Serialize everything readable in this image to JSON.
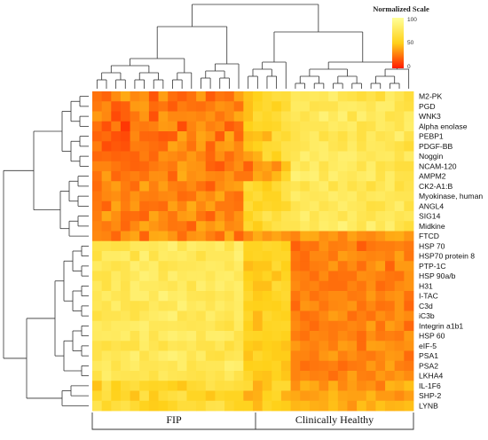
{
  "chart_data": {
    "type": "heatmap",
    "title": "",
    "xlabel": "",
    "ylabel": "",
    "legend": {
      "title": "Normalized Scale",
      "ticks": [
        "100",
        "50",
        "0"
      ],
      "colors": [
        "#ffff99",
        "#ffd11a",
        "#ff1a00"
      ],
      "range": [
        0,
        100
      ],
      "placement": "top-right"
    },
    "rows": [
      "M2-PK",
      "PGD",
      "WNK3",
      "Alpha enolase",
      "PEBP1",
      "PDGF-BB",
      "Noggin",
      "NCAM-120",
      "AMPM2",
      "CK2-A1:B",
      "Myokinase, human",
      "ANGL4",
      "SIG14",
      "Midkine",
      "FTCD",
      "HSP 70",
      "HSP70 protein 8",
      "PTP-1C",
      "HSP 90a/b",
      "H31",
      "I-TAC",
      "C3d",
      "iC3b",
      "Integrin a1b1",
      "HSP 60",
      "eIF-5",
      "PSA1",
      "PSA2",
      "LKHA4",
      "IL-1F6",
      "SHP-2",
      "LYNB"
    ],
    "column_groups": [
      {
        "name": "FIP",
        "count": 16
      },
      {
        "name": "Clinically Healthy",
        "count": 18
      }
    ],
    "n_columns": 34,
    "matrix": [
      [
        24,
        20,
        31,
        39,
        30,
        33,
        16,
        36,
        23,
        19,
        24,
        36,
        18,
        25,
        23,
        37,
        46,
        51,
        59,
        64,
        63,
        76,
        74,
        76,
        74,
        83,
        71,
        68,
        63,
        69,
        61,
        79,
        72,
        63
      ],
      [
        26,
        31,
        17,
        19,
        35,
        36,
        22,
        25,
        18,
        27,
        24,
        23,
        27,
        33,
        31,
        24,
        45,
        54,
        59,
        51,
        60,
        78,
        78,
        69,
        70,
        70,
        79,
        80,
        77,
        72,
        82,
        81,
        68,
        65
      ],
      [
        35,
        30,
        13,
        19,
        25,
        34,
        15,
        36,
        30,
        30,
        31,
        29,
        33,
        25,
        31,
        39,
        45,
        61,
        56,
        61,
        70,
        75,
        69,
        75,
        86,
        76,
        85,
        67,
        84,
        75,
        79,
        68,
        70,
        80
      ],
      [
        24,
        15,
        27,
        8,
        28,
        26,
        28,
        35,
        34,
        14,
        29,
        35,
        28,
        31,
        18,
        23,
        50,
        56,
        54,
        56,
        66,
        70,
        73,
        73,
        73,
        79,
        76,
        80,
        66,
        69,
        79,
        76,
        70,
        81
      ],
      [
        20,
        22,
        15,
        13,
        30,
        21,
        21,
        17,
        18,
        38,
        27,
        38,
        34,
        18,
        39,
        21,
        44,
        46,
        41,
        64,
        60,
        69,
        74,
        79,
        66,
        73,
        66,
        76,
        66,
        78,
        70,
        73,
        84,
        69
      ],
      [
        27,
        14,
        17,
        15,
        27,
        26,
        23,
        21,
        38,
        33,
        24,
        37,
        20,
        35,
        37,
        30,
        47,
        51,
        60,
        61,
        69,
        70,
        72,
        79,
        81,
        72,
        69,
        79,
        68,
        77,
        76,
        72,
        67,
        61
      ],
      [
        21,
        22,
        20,
        21,
        20,
        27,
        21,
        33,
        31,
        28,
        35,
        29,
        21,
        32,
        23,
        30,
        36,
        41,
        61,
        50,
        68,
        72,
        84,
        76,
        82,
        77,
        83,
        83,
        76,
        73,
        77,
        78,
        69,
        79
      ],
      [
        29,
        29,
        25,
        22,
        20,
        21,
        26,
        29,
        26,
        38,
        34,
        33,
        20,
        17,
        26,
        32,
        19,
        35,
        38,
        30,
        46,
        78,
        72,
        82,
        69,
        78,
        81,
        78,
        69,
        81,
        67,
        71,
        64,
        64
      ],
      [
        24,
        36,
        21,
        25,
        28,
        24,
        32,
        32,
        20,
        40,
        32,
        34,
        30,
        29,
        34,
        25,
        25,
        39,
        35,
        43,
        57,
        86,
        82,
        85,
        71,
        84,
        77,
        74,
        79,
        83,
        68,
        80,
        69,
        68
      ],
      [
        22,
        31,
        36,
        27,
        22,
        39,
        28,
        36,
        28,
        26,
        31,
        24,
        18,
        31,
        35,
        37,
        62,
        56,
        49,
        60,
        69,
        73,
        66,
        76,
        81,
        67,
        77,
        68,
        74,
        64,
        73,
        80,
        64,
        70
      ],
      [
        25,
        30,
        32,
        26,
        33,
        28,
        27,
        30,
        31,
        22,
        24,
        35,
        31,
        39,
        26,
        23,
        56,
        62,
        53,
        53,
        68,
        81,
        76,
        74,
        75,
        82,
        77,
        80,
        71,
        76,
        78,
        74,
        72,
        72
      ],
      [
        26,
        20,
        38,
        27,
        35,
        23,
        24,
        22,
        37,
        29,
        40,
        30,
        37,
        26,
        26,
        24,
        62,
        52,
        57,
        54,
        57,
        71,
        75,
        79,
        70,
        74,
        82,
        76,
        74,
        65,
        66,
        74,
        82,
        66
      ],
      [
        27,
        39,
        32,
        22,
        23,
        20,
        38,
        31,
        25,
        35,
        37,
        25,
        19,
        34,
        26,
        33,
        52,
        62,
        72,
        63,
        72,
        74,
        84,
        71,
        79,
        77,
        70,
        80,
        72,
        69,
        76,
        78,
        72,
        75
      ],
      [
        29,
        26,
        31,
        21,
        30,
        39,
        34,
        30,
        25,
        26,
        19,
        39,
        34,
        39,
        30,
        32,
        58,
        49,
        61,
        68,
        71,
        71,
        78,
        72,
        81,
        78,
        87,
        78,
        70,
        85,
        73,
        83,
        69,
        63
      ],
      [
        30,
        29,
        21,
        34,
        38,
        20,
        39,
        40,
        34,
        23,
        33,
        35,
        28,
        22,
        40,
        20,
        31,
        40,
        34,
        38,
        33,
        29,
        40,
        39,
        32,
        35,
        28,
        37,
        32,
        30,
        34,
        39,
        40,
        34
      ],
      [
        68,
        69,
        66,
        66,
        75,
        76,
        74,
        78,
        85,
        71,
        81,
        77,
        75,
        80,
        68,
        82,
        53,
        53,
        58,
        56,
        51,
        19,
        25,
        24,
        33,
        27,
        28,
        31,
        18,
        25,
        27,
        27,
        29,
        26
      ],
      [
        65,
        79,
        79,
        81,
        64,
        85,
        68,
        79,
        77,
        80,
        75,
        66,
        75,
        75,
        75,
        85,
        52,
        54,
        52,
        56,
        56,
        25,
        22,
        30,
        30,
        25,
        36,
        33,
        31,
        29,
        30,
        28,
        37,
        25
      ],
      [
        78,
        73,
        68,
        71,
        83,
        76,
        81,
        68,
        71,
        74,
        74,
        76,
        79,
        78,
        72,
        79,
        44,
        47,
        47,
        60,
        50,
        24,
        22,
        27,
        28,
        35,
        25,
        31,
        23,
        32,
        37,
        20,
        35,
        35
      ],
      [
        68,
        67,
        78,
        71,
        76,
        85,
        82,
        70,
        83,
        76,
        78,
        78,
        73,
        80,
        81,
        74,
        50,
        48,
        53,
        45,
        53,
        29,
        28,
        23,
        31,
        23,
        24,
        24,
        32,
        31,
        28,
        25,
        24,
        33
      ],
      [
        76,
        66,
        79,
        69,
        83,
        77,
        77,
        75,
        72,
        79,
        68,
        83,
        76,
        83,
        77,
        81,
        53,
        45,
        45,
        61,
        57,
        31,
        27,
        29,
        24,
        23,
        23,
        29,
        25,
        32,
        22,
        25,
        31,
        33
      ],
      [
        73,
        79,
        73,
        70,
        83,
        83,
        74,
        87,
        79,
        81,
        73,
        72,
        70,
        75,
        72,
        80,
        58,
        48,
        50,
        55,
        59,
        25,
        31,
        24,
        28,
        31,
        31,
        26,
        27,
        35,
        28,
        32,
        34,
        24
      ],
      [
        74,
        70,
        81,
        70,
        67,
        69,
        77,
        72,
        73,
        86,
        76,
        79,
        72,
        80,
        75,
        79,
        51,
        50,
        51,
        50,
        55,
        21,
        34,
        32,
        25,
        30,
        31,
        34,
        24,
        30,
        24,
        25,
        34,
        21
      ],
      [
        66,
        71,
        71,
        74,
        67,
        75,
        79,
        82,
        86,
        70,
        74,
        70,
        81,
        74,
        71,
        80,
        56,
        43,
        58,
        53,
        51,
        29,
        23,
        25,
        30,
        36,
        33,
        23,
        28,
        24,
        32,
        28,
        34,
        31
      ],
      [
        78,
        74,
        78,
        78,
        80,
        84,
        74,
        74,
        75,
        74,
        72,
        73,
        75,
        68,
        65,
        78,
        51,
        43,
        54,
        55,
        56,
        31,
        27,
        22,
        28,
        26,
        27,
        30,
        28,
        37,
        24,
        36,
        32,
        21
      ],
      [
        77,
        78,
        77,
        81,
        70,
        82,
        70,
        79,
        84,
        80,
        83,
        71,
        81,
        82,
        79,
        69,
        55,
        54,
        52,
        54,
        51,
        27,
        24,
        30,
        29,
        26,
        31,
        28,
        22,
        32,
        26,
        28,
        26,
        35
      ],
      [
        69,
        65,
        70,
        66,
        66,
        80,
        72,
        66,
        74,
        72,
        76,
        69,
        68,
        75,
        64,
        71,
        49,
        47,
        50,
        49,
        46,
        35,
        30,
        28,
        32,
        27,
        36,
        34,
        22,
        37,
        36,
        33,
        31,
        33
      ],
      [
        69,
        76,
        73,
        76,
        84,
        69,
        76,
        82,
        86,
        81,
        72,
        80,
        66,
        65,
        72,
        74,
        46,
        57,
        52,
        49,
        49,
        29,
        29,
        26,
        34,
        37,
        28,
        32,
        28,
        26,
        30,
        35,
        34,
        22
      ],
      [
        76,
        79,
        68,
        76,
        80,
        72,
        72,
        74,
        72,
        81,
        68,
        73,
        74,
        74,
        84,
        82,
        50,
        51,
        50,
        53,
        45,
        29,
        23,
        25,
        26,
        28,
        22,
        26,
        27,
        35,
        29,
        38,
        28,
        26
      ],
      [
        67,
        81,
        73,
        72,
        71,
        73,
        67,
        77,
        73,
        72,
        69,
        67,
        72,
        69,
        77,
        69,
        57,
        47,
        46,
        52,
        47,
        29,
        31,
        28,
        29,
        23,
        29,
        37,
        28,
        27,
        35,
        31,
        35,
        31
      ],
      [
        46,
        68,
        50,
        60,
        64,
        56,
        54,
        55,
        51,
        47,
        59,
        61,
        70,
        65,
        66,
        63,
        61,
        40,
        46,
        59,
        59,
        32,
        42,
        39,
        31,
        41,
        30,
        36,
        31,
        33,
        26,
        42,
        40,
        45
      ],
      [
        58,
        66,
        51,
        57,
        46,
        67,
        48,
        61,
        65,
        69,
        54,
        54,
        47,
        56,
        53,
        53,
        39,
        41,
        52,
        56,
        41,
        39,
        35,
        36,
        39,
        44,
        38,
        37,
        37,
        43,
        35,
        35,
        31,
        36
      ],
      [
        71,
        56,
        64,
        68,
        60,
        52,
        49,
        50,
        55,
        63,
        63,
        60,
        69,
        70,
        57,
        52,
        52,
        43,
        55,
        50,
        49,
        43,
        44,
        41,
        40,
        45,
        40,
        33,
        45,
        39,
        46,
        42,
        43,
        45
      ]
    ]
  }
}
